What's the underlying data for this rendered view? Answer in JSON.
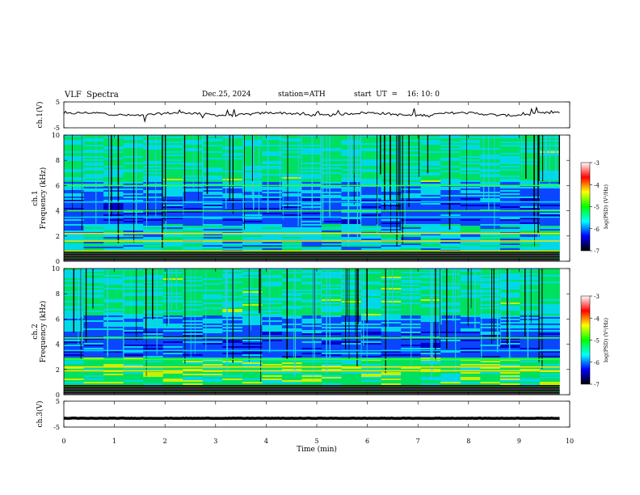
{
  "header": {
    "title": "VLF  Spectra",
    "date": "Dec.25, 2024",
    "station": "station=ATH",
    "start": "start  UT  =    16: 10: 0"
  },
  "chart_data": [
    {
      "type": "line",
      "title": "",
      "ylabel": "ch.1(V)",
      "ylim": [
        -5,
        5
      ],
      "yticks": [
        "5",
        "-5"
      ],
      "series": [
        {
          "baseline": 0.3
        }
      ]
    },
    {
      "type": "heatmap",
      "ylabel": "ch.1\nFrequency  (kHz)",
      "ylim": [
        0,
        10
      ],
      "yticks": [
        "0",
        "2",
        "4",
        "6",
        "8",
        "10"
      ],
      "colorbar": {
        "label": "log(PSD) (V²/Hz)",
        "range": [
          -7,
          -3
        ],
        "ticks": [
          "-3",
          "-4",
          "-5",
          "-6",
          "-7"
        ],
        "colors": [
          "#000000",
          "#0000ff",
          "#00ffff",
          "#00ff00",
          "#ffff00",
          "#ff0000",
          "#ffffff"
        ]
      },
      "bands_khz": [
        0.8,
        1.6,
        2.2,
        3.5,
        4.0,
        4.7,
        6.0
      ]
    },
    {
      "type": "heatmap",
      "ylabel": "ch.2\nFrequency  (kHz)",
      "ylim": [
        0,
        10
      ],
      "yticks": [
        "0",
        "2",
        "4",
        "6",
        "8",
        "10"
      ],
      "colorbar": {
        "label": "log(PSD) (V²/Hz)",
        "range": [
          -7,
          -3
        ],
        "ticks": [
          "-3",
          "-4",
          "-5",
          "-6",
          "-7"
        ],
        "colors": [
          "#000000",
          "#0000ff",
          "#00ffff",
          "#00ff00",
          "#ffff00",
          "#ff0000",
          "#ffffff"
        ]
      },
      "bands_khz": [
        1.9,
        2.2,
        2.8,
        3.5,
        4.5
      ]
    },
    {
      "type": "line",
      "ylabel": "ch.3(V)",
      "ylim": [
        -5,
        5
      ],
      "yticks": [
        "5",
        "-5"
      ],
      "series": [
        {
          "baseline": -1.6
        }
      ]
    }
  ],
  "xaxis": {
    "label": "Time  (min)",
    "range": [
      0,
      10
    ],
    "ticks": [
      "0",
      "1",
      "2",
      "3",
      "4",
      "5",
      "6",
      "7",
      "8",
      "9",
      "10"
    ],
    "data_end": 9.8
  }
}
